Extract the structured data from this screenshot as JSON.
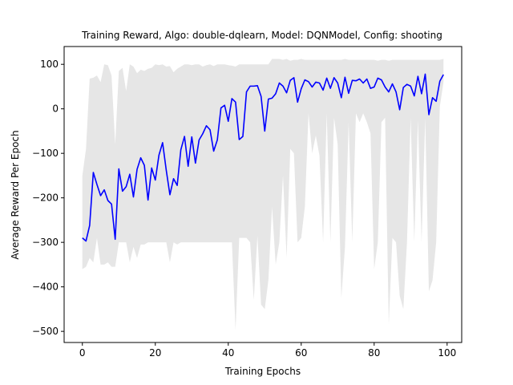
{
  "chart_data": {
    "type": "line",
    "title": "Training Reward, Algo: double-dqlearn, Model: DQNModel, Config: shooting",
    "xlabel": "Training Epochs",
    "ylabel": "Average Reward Per Epoch",
    "xlim": [
      -5,
      104
    ],
    "ylim": [
      -525,
      140
    ],
    "xticks": [
      0,
      20,
      40,
      60,
      80,
      100
    ],
    "yticks": [
      100,
      0,
      -100,
      -200,
      -300,
      -400,
      -500
    ],
    "grid": false,
    "series": [
      {
        "color": "#0000ff",
        "x": [
          0,
          1,
          2,
          3,
          4,
          5,
          6,
          7,
          8,
          9,
          10,
          11,
          12,
          13,
          14,
          15,
          16,
          17,
          18,
          19,
          20,
          21,
          22,
          23,
          24,
          25,
          26,
          27,
          28,
          29,
          30,
          31,
          32,
          33,
          34,
          35,
          36,
          37,
          38,
          39,
          40,
          41,
          42,
          43,
          44,
          45,
          46,
          47,
          48,
          49,
          50,
          51,
          52,
          53,
          54,
          55,
          56,
          57,
          58,
          59,
          60,
          61,
          62,
          63,
          64,
          65,
          66,
          67,
          68,
          69,
          70,
          71,
          72,
          73,
          74,
          75,
          76,
          77,
          78,
          79,
          80,
          81,
          82,
          83,
          84,
          85,
          86,
          87,
          88,
          89,
          90,
          91,
          92,
          93,
          94,
          95,
          96,
          97,
          98,
          99
        ],
        "values": [
          -290,
          -297,
          -262,
          -143,
          -170,
          -195,
          -182,
          -206,
          -214,
          -293,
          -135,
          -185,
          -175,
          -147,
          -198,
          -136,
          -110,
          -127,
          -205,
          -133,
          -160,
          -104,
          -76,
          -138,
          -193,
          -157,
          -172,
          -92,
          -62,
          -129,
          -63,
          -122,
          -70,
          -56,
          -38,
          -47,
          -95,
          -70,
          2,
          8,
          -28,
          23,
          15,
          -69,
          -62,
          38,
          51,
          51,
          52,
          28,
          -50,
          22,
          24,
          34,
          58,
          51,
          36,
          64,
          70,
          15,
          45,
          65,
          61,
          49,
          60,
          58,
          42,
          69,
          46,
          70,
          58,
          25,
          71,
          35,
          64,
          63,
          67,
          58,
          67,
          46,
          49,
          69,
          65,
          49,
          38,
          56,
          38,
          -2,
          48,
          55,
          51,
          29,
          73,
          34,
          78,
          -13,
          25,
          17,
          62,
          77
        ]
      }
    ],
    "band": {
      "color": "#e6e6e6",
      "upper": [
        -150,
        -90,
        68,
        70,
        75,
        60,
        100,
        98,
        75,
        -80,
        85,
        92,
        40,
        100,
        95,
        80,
        88,
        85,
        90,
        92,
        100,
        98,
        100,
        95,
        96,
        82,
        90,
        95,
        100,
        100,
        98,
        100,
        100,
        95,
        98,
        100,
        96,
        100,
        100,
        100,
        98,
        97,
        95,
        100,
        100,
        100,
        100,
        100,
        100,
        100,
        100,
        100,
        112,
        112,
        112,
        110,
        112,
        108,
        110,
        110,
        112,
        110,
        110,
        110,
        110,
        110,
        110,
        110,
        110,
        110,
        110,
        110,
        112,
        110,
        110,
        110,
        110,
        110,
        110,
        110,
        110,
        108,
        110,
        110,
        108,
        110,
        110,
        110,
        110,
        110,
        110,
        110,
        110,
        110,
        110,
        110,
        110,
        110,
        110,
        112
      ],
      "lower": [
        -360,
        -355,
        -335,
        -345,
        -290,
        -350,
        -350,
        -345,
        -355,
        -355,
        -300,
        -300,
        -300,
        -345,
        -310,
        -335,
        -305,
        -305,
        -300,
        -300,
        -300,
        -300,
        -300,
        -300,
        -345,
        -300,
        -305,
        -300,
        -300,
        -300,
        -300,
        -300,
        -300,
        -300,
        -300,
        -300,
        -300,
        -300,
        -300,
        -300,
        -300,
        -300,
        -497,
        -290,
        -290,
        -290,
        -300,
        -430,
        -285,
        -440,
        -450,
        -385,
        -220,
        -350,
        -300,
        -150,
        -335,
        -90,
        -100,
        -300,
        -290,
        -220,
        -10,
        -100,
        -60,
        -105,
        -300,
        -10,
        -300,
        -20,
        -80,
        -425,
        -310,
        -30,
        -300,
        -10,
        -30,
        -10,
        -30,
        -55,
        -360,
        -300,
        -30,
        -20,
        -485,
        -290,
        -300,
        -420,
        -450,
        -300,
        -20,
        -300,
        -25,
        -300,
        -20,
        -410,
        -385,
        -300,
        5,
        60
      ]
    }
  }
}
